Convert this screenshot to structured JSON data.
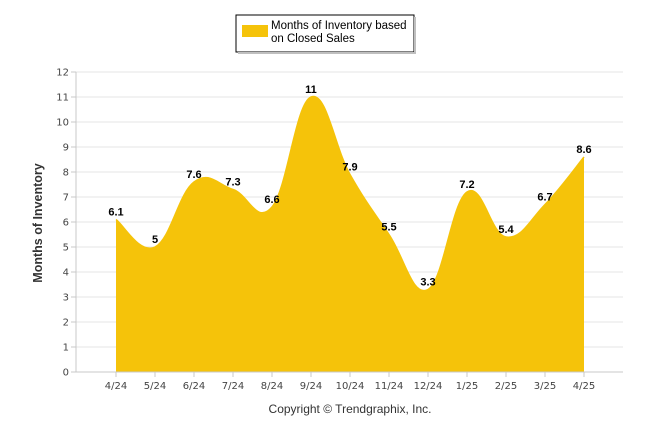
{
  "chart_data": {
    "type": "area",
    "categories": [
      "4/24",
      "5/24",
      "6/24",
      "7/24",
      "8/24",
      "9/24",
      "10/24",
      "11/24",
      "12/24",
      "1/25",
      "2/25",
      "3/25",
      "4/25"
    ],
    "series": [
      {
        "name": "Months of Inventory based on Closed Sales",
        "values": [
          6.1,
          5,
          7.6,
          7.3,
          6.6,
          11,
          7.9,
          5.5,
          3.3,
          7.2,
          5.4,
          6.7,
          8.6
        ],
        "color": "#f5c30a"
      }
    ],
    "data_labels": [
      "6.1",
      "5",
      "7.6",
      "7.3",
      "6.6",
      "11",
      "7.9",
      "5.5",
      "3.3",
      "7.2",
      "5.4",
      "6.7",
      "8.6"
    ],
    "ylabel": "Months of Inventory",
    "xlabel": "",
    "ylim": [
      0,
      12
    ],
    "yticks": [
      "0",
      "1",
      "2",
      "3",
      "4",
      "5",
      "6",
      "7",
      "8",
      "9",
      "10",
      "11",
      "12"
    ],
    "legend": {
      "line1": "Months of Inventory based",
      "line2": "on Closed Sales",
      "position": "top-center"
    },
    "grid": true
  },
  "footer": {
    "copyright": "Copyright © Trendgraphix, Inc."
  }
}
